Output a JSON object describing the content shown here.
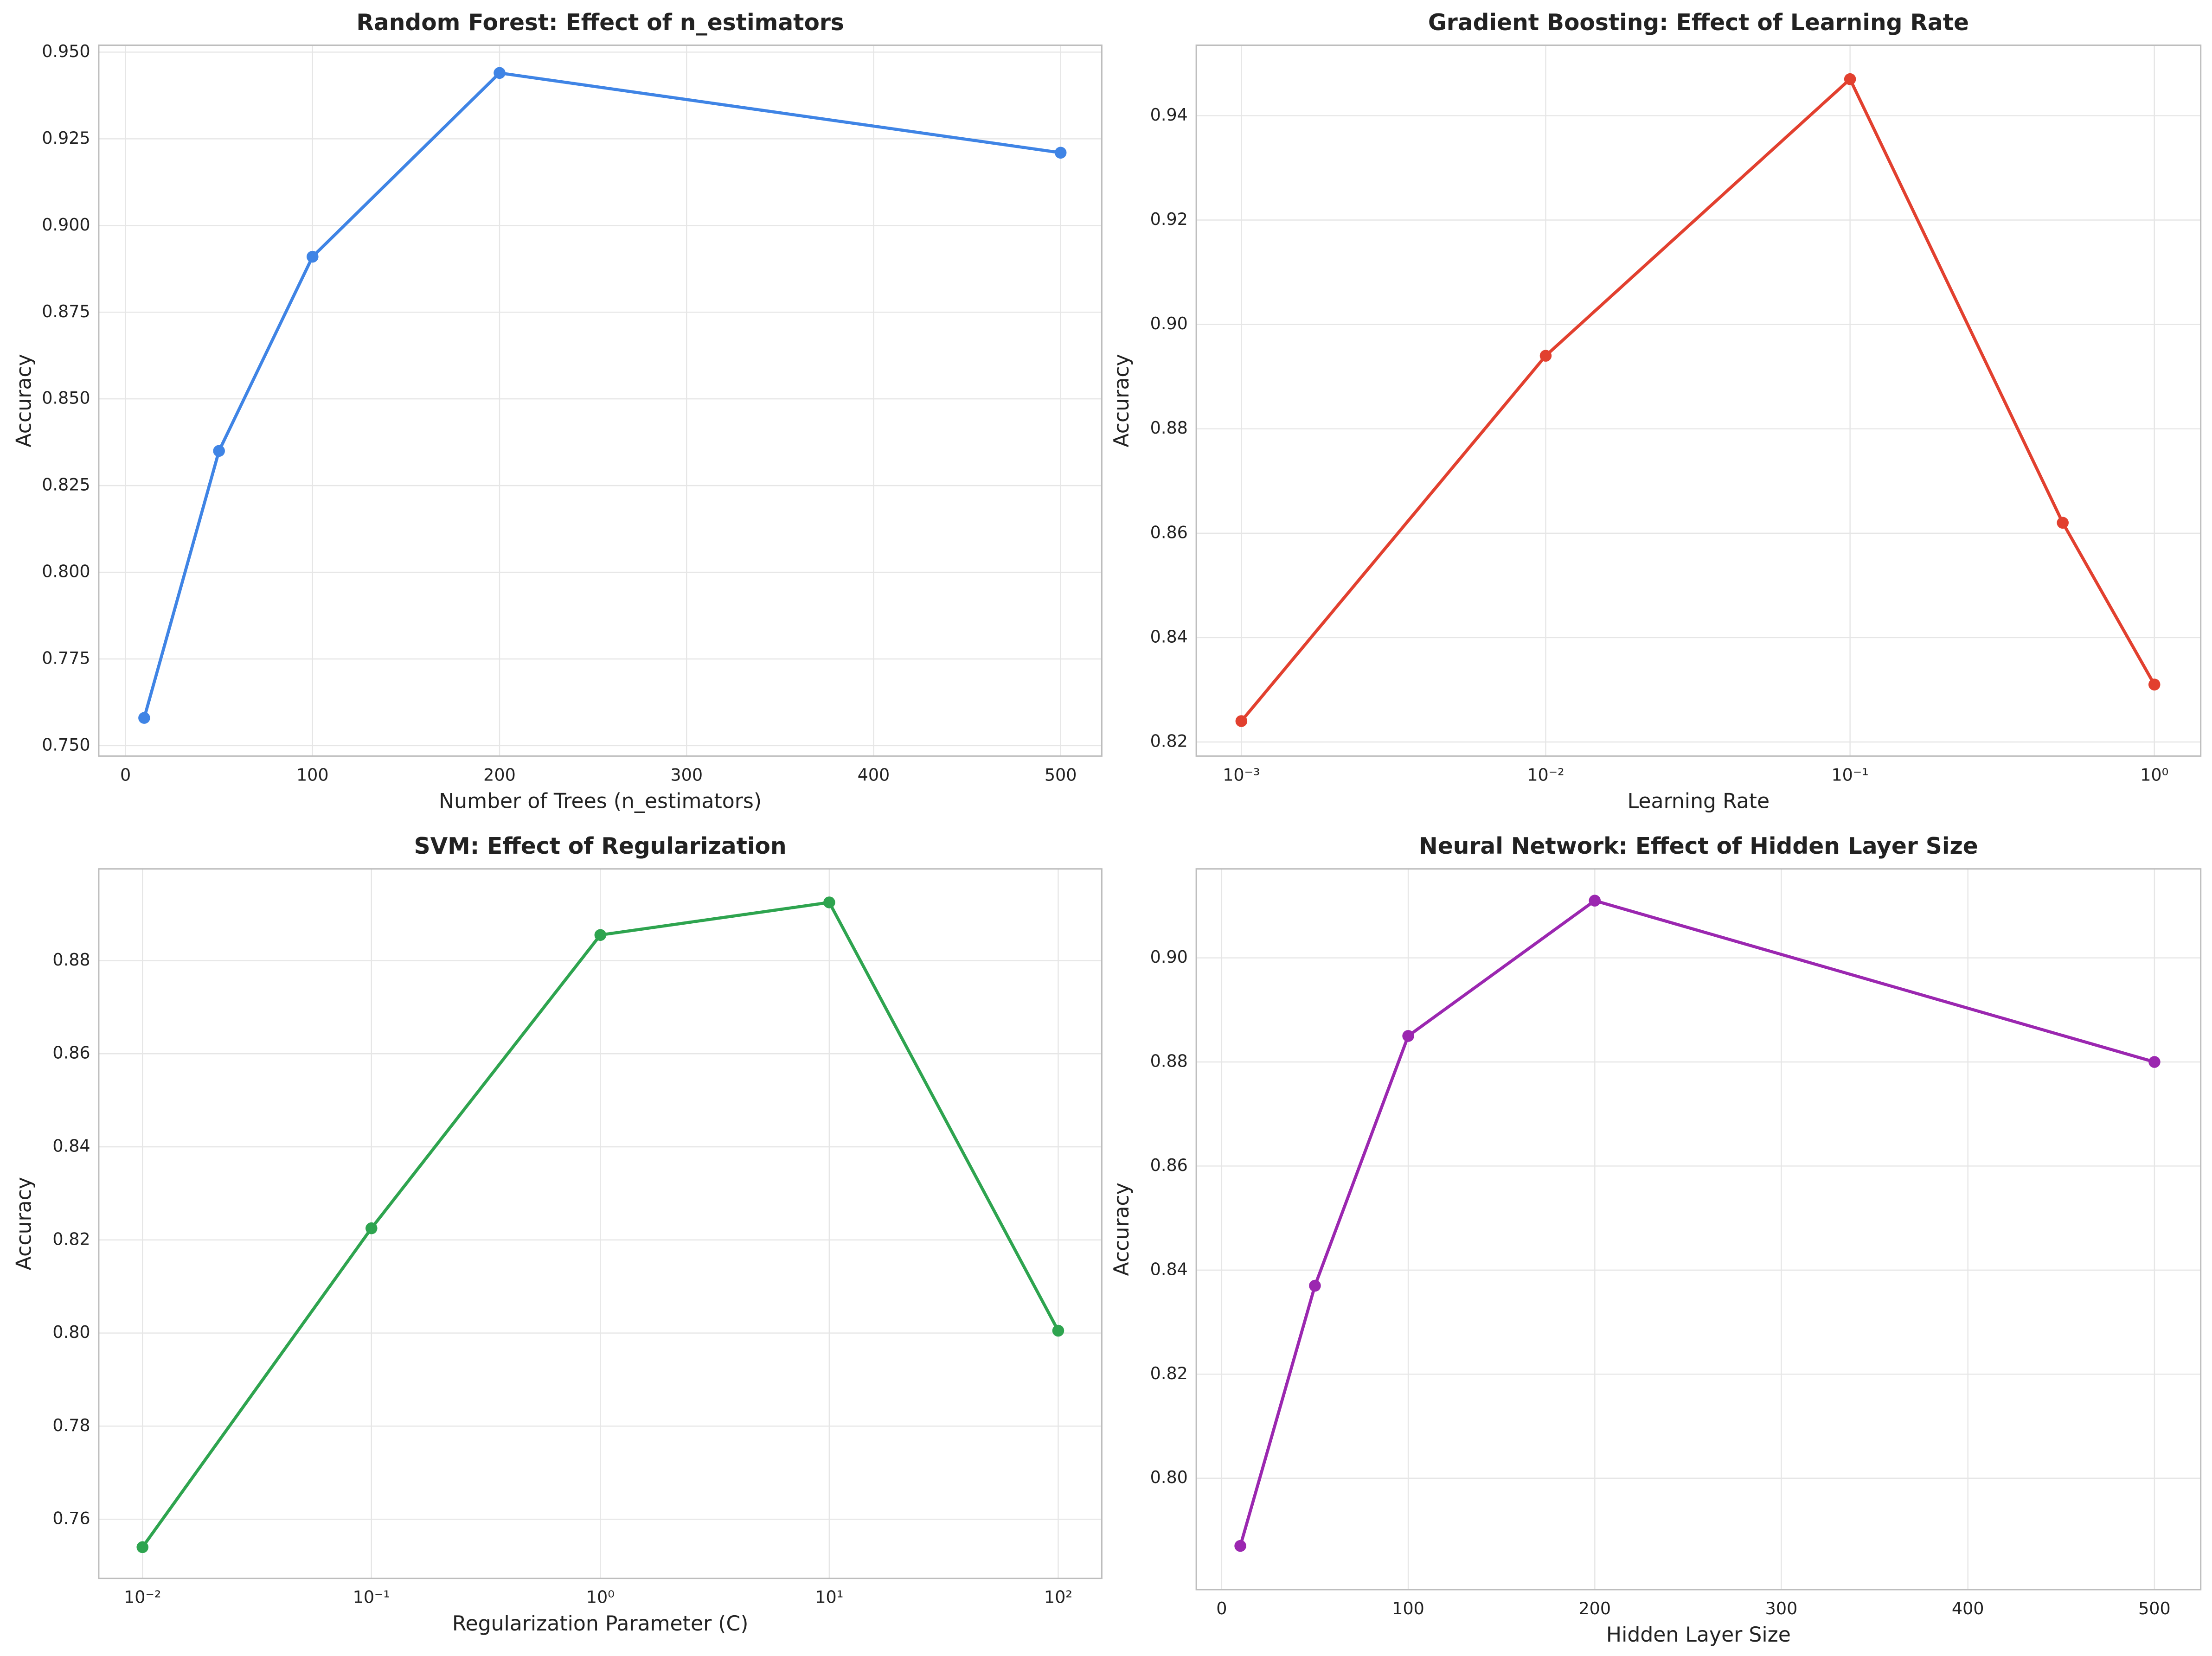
{
  "chart_data": [
    {
      "type": "line",
      "title": "Random Forest: Effect of n_estimators",
      "xlabel": "Number of Trees (n_estimators)",
      "ylabel": "Accuracy",
      "x": [
        10,
        50,
        100,
        200,
        500
      ],
      "values": [
        0.758,
        0.835,
        0.891,
        0.944,
        0.921
      ],
      "color": "#3f84e5",
      "xscale": "linear",
      "xlim": [
        -14.3,
        522
      ],
      "xticks": [
        0,
        100,
        200,
        300,
        400,
        500
      ],
      "ylim": [
        0.747,
        0.952
      ],
      "yticks": [
        {
          "value": 0.75,
          "label": "0.750"
        },
        {
          "value": 0.775,
          "label": "0.775"
        },
        {
          "value": 0.8,
          "label": "0.800"
        },
        {
          "value": 0.825,
          "label": "0.825"
        },
        {
          "value": 0.85,
          "label": "0.850"
        },
        {
          "value": 0.875,
          "label": "0.875"
        },
        {
          "value": 0.9,
          "label": "0.900"
        },
        {
          "value": 0.925,
          "label": "0.925"
        },
        {
          "value": 0.95,
          "label": "0.950"
        }
      ],
      "grid": true
    },
    {
      "type": "line",
      "title": "Gradient Boosting: Effect of Learning Rate",
      "xlabel": "Learning Rate",
      "ylabel": "Accuracy",
      "x": [
        0.001,
        0.01,
        0.1,
        0.5,
        1
      ],
      "values": [
        0.824,
        0.894,
        0.947,
        0.862,
        0.831
      ],
      "color": "#e2402f",
      "xscale": "log",
      "xlim": [
        0.000711,
        1.42
      ],
      "xticks": [
        {
          "value": 0.001,
          "label": "10⁻³"
        },
        {
          "value": 0.01,
          "label": "10⁻²"
        },
        {
          "value": 0.1,
          "label": "10⁻¹"
        },
        {
          "value": 1,
          "label": "10⁰"
        }
      ],
      "ylim": [
        0.8173,
        0.9535
      ],
      "yticks": [
        0.82,
        0.84,
        0.86,
        0.88,
        {
          "value": 0.9,
          "label": "0.90"
        },
        0.92,
        0.94
      ],
      "grid": true
    },
    {
      "type": "line",
      "title": "SVM: Effect of Regularization",
      "xlabel": "Regularization Parameter (C)",
      "ylabel": "Accuracy",
      "x": [
        0.01,
        0.1,
        1,
        10,
        100
      ],
      "values": [
        0.754,
        0.8225,
        0.8855,
        0.8925,
        0.8005
      ],
      "color": "#2ea44f",
      "xscale": "log",
      "xlim": [
        0.00644,
        155
      ],
      "xticks": [
        {
          "value": 0.01,
          "label": "10⁻²"
        },
        {
          "value": 0.1,
          "label": "10⁻¹"
        },
        {
          "value": 1,
          "label": "10⁰"
        },
        {
          "value": 10,
          "label": "10¹"
        },
        {
          "value": 100,
          "label": "10²"
        }
      ],
      "ylim": [
        0.7473,
        0.8997
      ],
      "yticks": [
        0.76,
        0.78,
        {
          "value": 0.8,
          "label": "0.80"
        },
        0.82,
        0.84,
        0.86,
        0.88
      ],
      "grid": true
    },
    {
      "type": "line",
      "title": "Neural Network: Effect of Hidden Layer Size",
      "xlabel": "Hidden Layer Size",
      "ylabel": "Accuracy",
      "x": [
        10,
        50,
        100,
        200,
        500
      ],
      "values": [
        0.787,
        0.837,
        0.885,
        0.911,
        0.88
      ],
      "color": "#9b27b0",
      "xscale": "linear",
      "xlim": [
        -13.6,
        524.8
      ],
      "xticks": [
        0,
        100,
        200,
        300,
        400,
        500
      ],
      "ylim": [
        0.7786,
        0.9171
      ],
      "yticks": [
        {
          "value": 0.8,
          "label": "0.80"
        },
        0.82,
        0.84,
        0.86,
        0.88,
        {
          "value": 0.9,
          "label": "0.90"
        }
      ],
      "grid": true
    }
  ]
}
